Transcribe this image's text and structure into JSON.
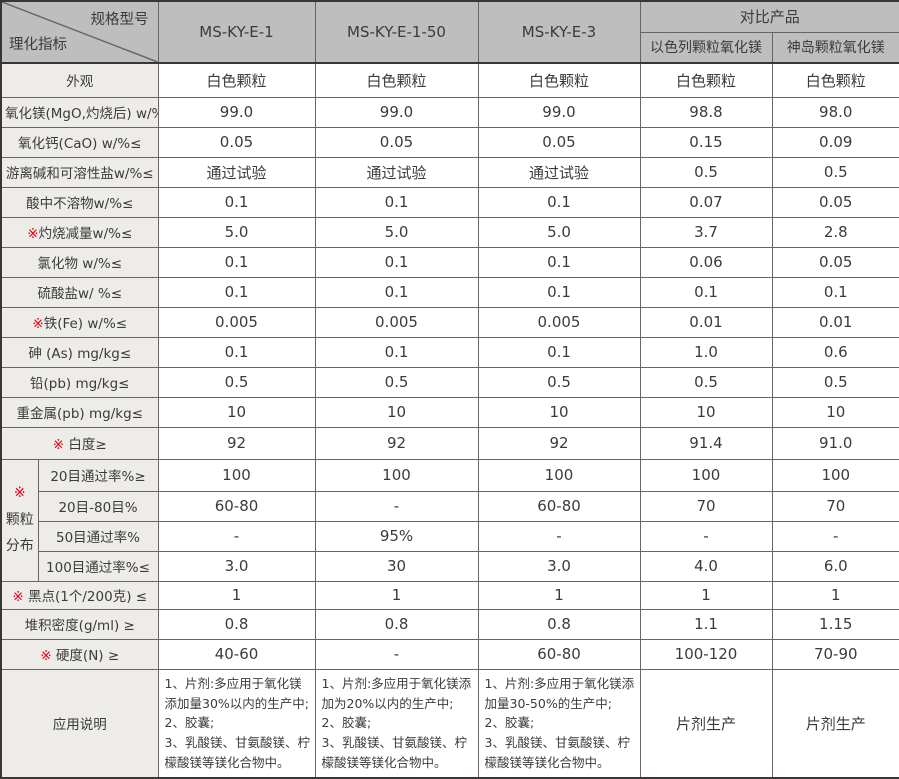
{
  "table": {
    "header": {
      "corner_top": "规格型号",
      "corner_bottom": "理化指标",
      "product_columns": [
        "MS-KY-E-1",
        "MS-KY-E-1-50",
        "MS-KY-E-3"
      ],
      "compare_group_label": "对比产品",
      "compare_columns": [
        "以色列颗粒氧化镁",
        "神岛颗粒氧化镁"
      ]
    },
    "rows": [
      {
        "label": "外观",
        "values": [
          "白色颗粒",
          "白色颗粒",
          "白色颗粒",
          "白色颗粒",
          "白色颗粒"
        ]
      },
      {
        "label": "氧化镁(MgO,灼烧后) w/%≥",
        "values": [
          "99.0",
          "99.0",
          "99.0",
          "98.8",
          "98.0"
        ]
      },
      {
        "label": "氧化钙(CaO) w/%≤",
        "values": [
          "0.05",
          "0.05",
          "0.05",
          "0.15",
          "0.09"
        ]
      },
      {
        "label": "游离碱和可溶性盐w/%≤",
        "values": [
          "通过试验",
          "通过试验",
          "通过试验",
          "0.5",
          "0.5"
        ]
      },
      {
        "label": "酸中不溶物w/%≤",
        "values": [
          "0.1",
          "0.1",
          "0.1",
          "0.07",
          "0.05"
        ]
      },
      {
        "mark": "※",
        "label": "灼烧减量w/%≤",
        "values": [
          "5.0",
          "5.0",
          "5.0",
          "3.7",
          "2.8"
        ]
      },
      {
        "label": "氯化物 w/%≤",
        "values": [
          "0.1",
          "0.1",
          "0.1",
          "0.06",
          "0.05"
        ]
      },
      {
        "label": "硫酸盐w/ %≤",
        "values": [
          "0.1",
          "0.1",
          "0.1",
          "0.1",
          "0.1"
        ]
      },
      {
        "mark": "※",
        "label": "铁(Fe) w/%≤",
        "values": [
          "0.005",
          "0.005",
          "0.005",
          "0.01",
          "0.01"
        ]
      },
      {
        "label": "砷 (As) mg/kg≤",
        "values": [
          "0.1",
          "0.1",
          "0.1",
          "1.0",
          "0.6"
        ]
      },
      {
        "label": "铅(pb) mg/kg≤",
        "values": [
          "0.5",
          "0.5",
          "0.5",
          "0.5",
          "0.5"
        ]
      },
      {
        "label": "重金属(pb) mg/kg≤",
        "values": [
          "10",
          "10",
          "10",
          "10",
          "10"
        ]
      },
      {
        "mark": "※",
        "label": " 白度≥",
        "values": [
          "92",
          "92",
          "92",
          "91.4",
          "91.0"
        ]
      },
      {
        "group": {
          "mark": "※",
          "lines": [
            "颗粒",
            "分布"
          ],
          "rowspan": 4
        },
        "sub_label": "20目通过率%≥",
        "values": [
          "100",
          "100",
          "100",
          "100",
          "100"
        ]
      },
      {
        "sub_label": "20目-80目%",
        "values": [
          "60-80",
          "-",
          "60-80",
          "70",
          "70"
        ]
      },
      {
        "sub_label": "50目通过率%",
        "values": [
          "-",
          "95%",
          "-",
          "-",
          "-"
        ]
      },
      {
        "sub_label": "100目通过率%≤",
        "values": [
          "3.0",
          "30",
          "3.0",
          "4.0",
          "6.0"
        ]
      },
      {
        "mark": "※",
        "label": " 黑点(1个/200克) ≤",
        "values": [
          "1",
          "1",
          "1",
          "1",
          "1"
        ]
      },
      {
        "label": "堆积密度(g/ml) ≥",
        "values": [
          "0.8",
          "0.8",
          "0.8",
          "1.1",
          "1.15"
        ]
      },
      {
        "mark": "※",
        "label": " 硬度(N) ≥",
        "values": [
          "40-60",
          "-",
          "60-80",
          "100-120",
          "70-90"
        ]
      },
      {
        "label": "应用说明",
        "values": [
          "1、片剂:多应用于氧化镁添加量30%以内的生产中;\n2、胶囊;\n3、乳酸镁、甘氨酸镁、柠檬酸镁等镁化合物中。",
          "1、片剂:多应用于氧化镁添加为20%以内的生产中;\n2、胶囊;\n3、乳酸镁、甘氨酸镁、柠檬酸镁等镁化合物中。",
          "1、片剂:多应用于氧化镁添加量30-50%的生产中;\n2、胶囊;\n3、乳酸镁、甘氨酸镁、柠檬酸镁等镁化合物中。",
          "片剂生产",
          "片剂生产"
        ]
      }
    ]
  },
  "icons": {
    "required_mark": "※"
  },
  "colors": {
    "header_bg": "#bfbebe",
    "label_bg": "#eeece9",
    "accent_red": "#e60012",
    "border_inner": "#6b6464",
    "border_outer": "#3a3636",
    "text": "#3b3b3b"
  }
}
